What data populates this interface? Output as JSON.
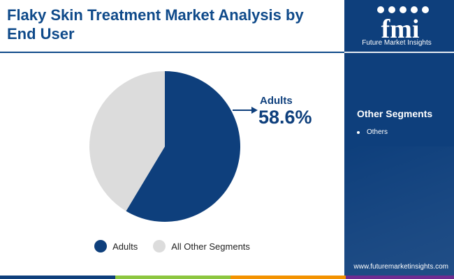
{
  "header": {
    "title": "Flaky Skin Treatment Market Analysis by End User"
  },
  "brand": {
    "logo_mark": "fmi",
    "logo_name": "Future Market Insights",
    "website": "www.futuremarketinsights.com"
  },
  "sidebar": {
    "heading": "Other Segments",
    "items": [
      "Others"
    ]
  },
  "callout": {
    "label": "Adults",
    "value": "58.6%"
  },
  "legend": {
    "items": [
      "Adults",
      "All Other Segments"
    ]
  },
  "colors": {
    "primary": "#0e3f7c",
    "secondary": "#dcdcdc",
    "accent_green": "#8cc63f",
    "accent_orange": "#f39200",
    "accent_purple": "#6f2c91"
  },
  "chart_data": {
    "type": "pie",
    "categories": [
      "Adults",
      "All Other Segments"
    ],
    "values": [
      58.6,
      41.4
    ],
    "colors": [
      "#0e3f7c",
      "#dcdcdc"
    ],
    "title": "Flaky Skin Treatment Market Analysis by End User",
    "legend_position": "bottom"
  }
}
